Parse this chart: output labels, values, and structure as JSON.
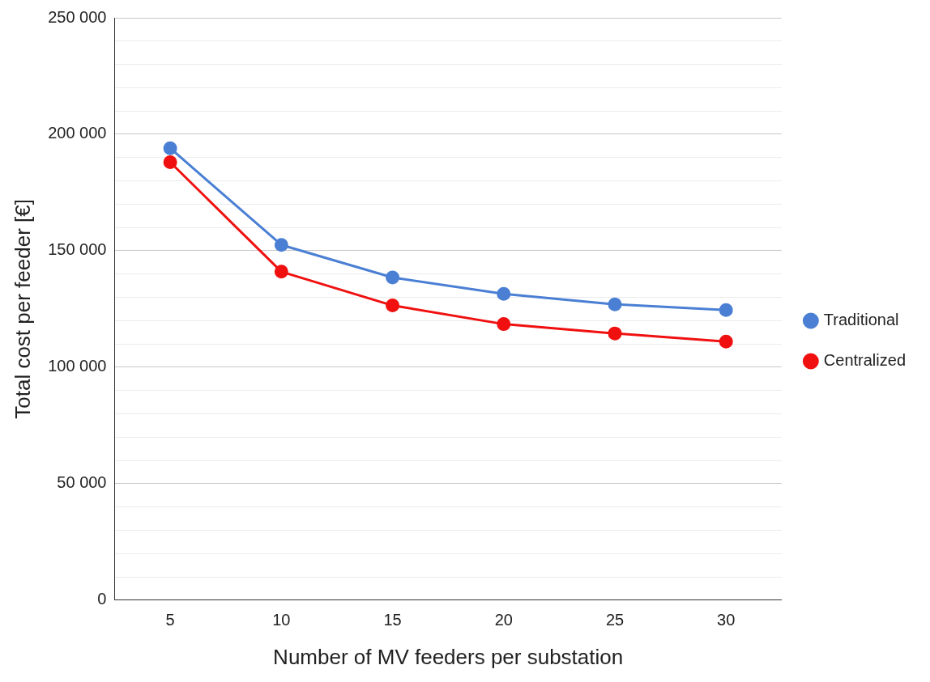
{
  "chart_data": {
    "type": "line",
    "xlabel": "Number of MV feeders per substation",
    "ylabel": "Total cost per feeder [€]",
    "categories": [
      "5",
      "10",
      "15",
      "20",
      "25",
      "30"
    ],
    "series": [
      {
        "name": "Traditional",
        "color": "#4a7fd4",
        "values": [
          194000,
          152500,
          138500,
          131500,
          127000,
          124500
        ]
      },
      {
        "name": "Centralized",
        "color": "#f01010",
        "values": [
          188000,
          141000,
          126500,
          118500,
          114500,
          111000
        ]
      }
    ],
    "ylim": [
      0,
      250000
    ],
    "yticks": [
      {
        "value": 0,
        "label": "0"
      },
      {
        "value": 10000,
        "label": null
      },
      {
        "value": 20000,
        "label": null
      },
      {
        "value": 30000,
        "label": null
      },
      {
        "value": 40000,
        "label": null
      },
      {
        "value": 50000,
        "label": "50 000"
      },
      {
        "value": 60000,
        "label": null
      },
      {
        "value": 70000,
        "label": null
      },
      {
        "value": 80000,
        "label": null
      },
      {
        "value": 90000,
        "label": null
      },
      {
        "value": 100000,
        "label": "100 000"
      },
      {
        "value": 110000,
        "label": null
      },
      {
        "value": 120000,
        "label": null
      },
      {
        "value": 130000,
        "label": null
      },
      {
        "value": 140000,
        "label": null
      },
      {
        "value": 150000,
        "label": "150 000"
      },
      {
        "value": 160000,
        "label": null
      },
      {
        "value": 170000,
        "label": null
      },
      {
        "value": 180000,
        "label": null
      },
      {
        "value": 190000,
        "label": null
      },
      {
        "value": 200000,
        "label": "200 000"
      },
      {
        "value": 210000,
        "label": null
      },
      {
        "value": 220000,
        "label": null
      },
      {
        "value": 230000,
        "label": null
      },
      {
        "value": 240000,
        "label": null
      },
      {
        "value": 250000,
        "label": "250 000"
      }
    ],
    "grid": "y",
    "legend": "right",
    "marker": "circle",
    "line_style": "solid"
  }
}
